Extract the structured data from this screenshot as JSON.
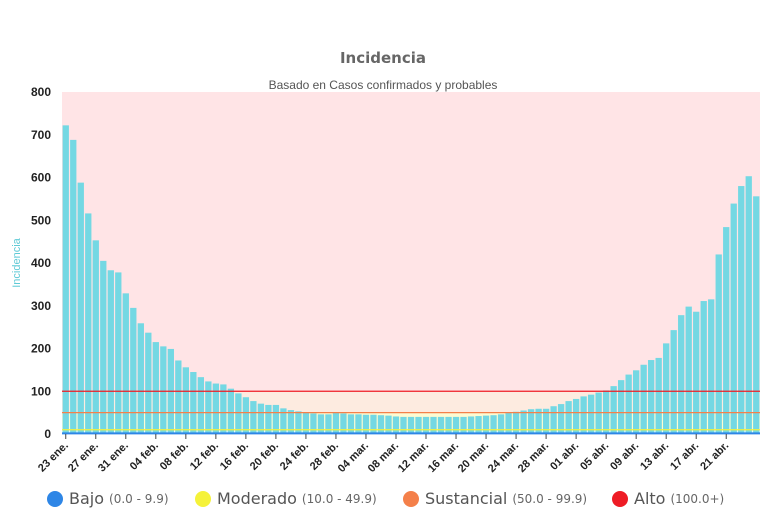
{
  "chart_data": {
    "type": "bar",
    "title": "Incidencia",
    "subtitle": "Basado en Casos confirmados y probables",
    "ylabel": "Incidencia",
    "xlabel": "",
    "ylim": [
      0,
      800
    ],
    "yticks": [
      0,
      100,
      200,
      300,
      400,
      500,
      600,
      700,
      800
    ],
    "xtick_labels": [
      "23 ene.",
      "27 ene.",
      "31 ene.",
      "04 feb.",
      "08 feb.",
      "12 feb.",
      "16 feb.",
      "20 feb.",
      "24 feb.",
      "28 feb.",
      "04 mar.",
      "08 mar.",
      "12 mar.",
      "16 mar.",
      "20 mar.",
      "24 mar.",
      "28 mar.",
      "01 abr.",
      "05 abr.",
      "09 abr.",
      "13 abr.",
      "17 abr.",
      "21 abr."
    ],
    "xtick_every": 4,
    "bar_color": "#74d8e3",
    "values": [
      722,
      688,
      588,
      516,
      453,
      405,
      383,
      378,
      329,
      295,
      259,
      237,
      215,
      205,
      199,
      172,
      156,
      145,
      133,
      123,
      118,
      116,
      106,
      95,
      86,
      77,
      71,
      68,
      68,
      60,
      56,
      53,
      51,
      48,
      46,
      46,
      49,
      48,
      46,
      46,
      45,
      45,
      44,
      43,
      41,
      40,
      40,
      40,
      40,
      40,
      40,
      40,
      40,
      40,
      41,
      42,
      43,
      44,
      46,
      49,
      52,
      55,
      58,
      59,
      59,
      65,
      70,
      77,
      82,
      88,
      92,
      97,
      102,
      112,
      126,
      139,
      149,
      162,
      173,
      178,
      212,
      243,
      278,
      298,
      286,
      311,
      315,
      420,
      484,
      539,
      580,
      603,
      556
    ],
    "bands": [
      {
        "name": "Bajo",
        "range": "(0.0 - 9.9)",
        "from": 0,
        "to": 10,
        "color": "#2e86e6",
        "fill": "#e6f6ff"
      },
      {
        "name": "Moderado",
        "range": "(10.0 - 49.9)",
        "from": 10,
        "to": 50,
        "color": "#f5f23a",
        "fill": "#fdfbd2"
      },
      {
        "name": "Sustancial",
        "range": "(50.0 - 99.9)",
        "from": 50,
        "to": 100,
        "color": "#f4804a",
        "fill": "#fdebe0"
      },
      {
        "name": "Alto",
        "range": "(100.0+)",
        "from": 100,
        "to": 800,
        "color": "#ee1c25",
        "fill": "#ffe4e6"
      }
    ],
    "legend_position": "bottom",
    "grid": false
  }
}
